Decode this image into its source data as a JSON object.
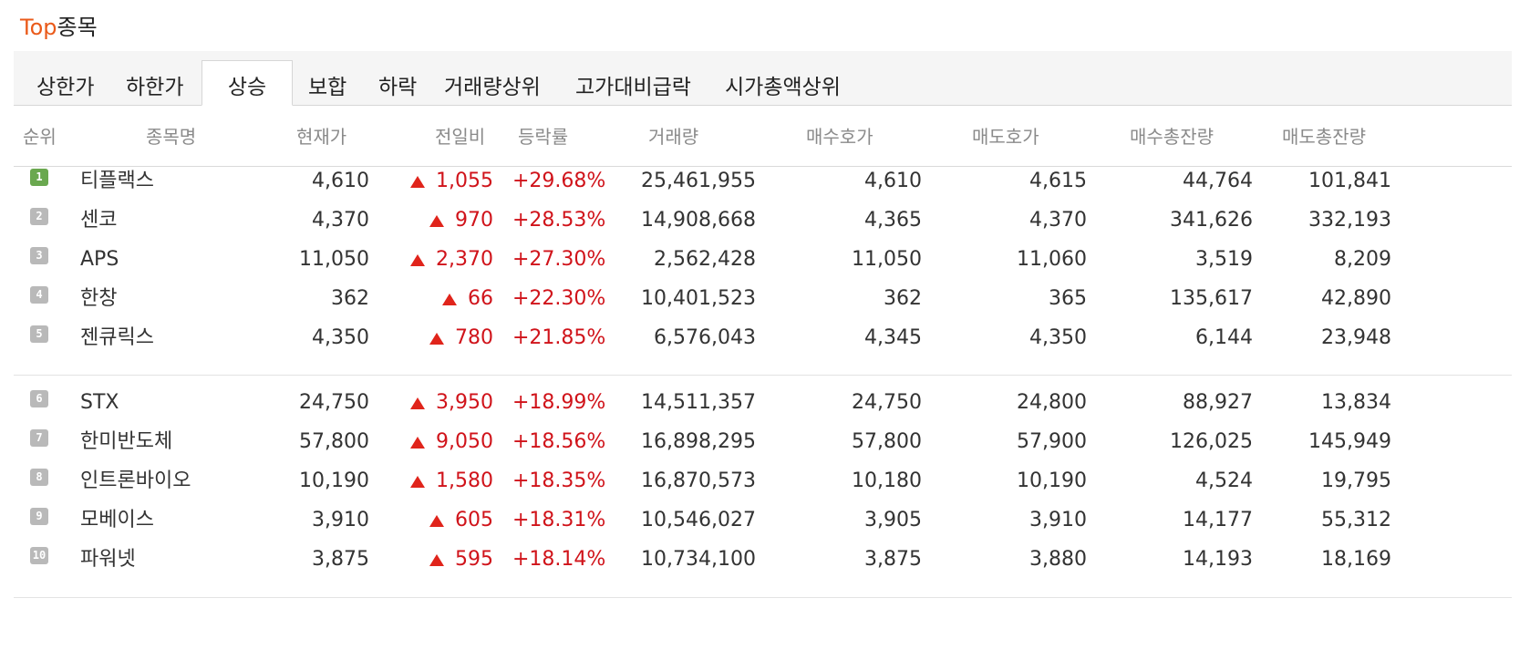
{
  "header": {
    "title_accent": "Top",
    "title_rest": "종목"
  },
  "tabs": [
    {
      "label": "상한가"
    },
    {
      "label": "하한가"
    },
    {
      "label": "상승",
      "active": true
    },
    {
      "label": "보합"
    },
    {
      "label": "하락"
    },
    {
      "label": "거래량상위"
    },
    {
      "label": "고가대비급락"
    },
    {
      "label": "시가총액상위"
    }
  ],
  "columns": [
    "순위",
    "종목명",
    "현재가",
    "전일비",
    "등락률",
    "거래량",
    "매수호가",
    "매도호가",
    "매수총잔량",
    "매도총잔량"
  ],
  "colors": {
    "accent": "#ea5a1a",
    "up": "#d0131a",
    "rank_first": "#6aa84f",
    "rank_other": "#b9b9b9"
  },
  "rows": [
    {
      "rank": "1",
      "name": "티플랙스",
      "price": "4,610",
      "change": "1,055",
      "rate": "+29.68%",
      "volume": "25,461,955",
      "bid": "4,610",
      "ask": "4,615",
      "bid_total": "44,764",
      "ask_total": "101,841"
    },
    {
      "rank": "2",
      "name": "센코",
      "price": "4,370",
      "change": "970",
      "rate": "+28.53%",
      "volume": "14,908,668",
      "bid": "4,365",
      "ask": "4,370",
      "bid_total": "341,626",
      "ask_total": "332,193"
    },
    {
      "rank": "3",
      "name": "APS",
      "price": "11,050",
      "change": "2,370",
      "rate": "+27.30%",
      "volume": "2,562,428",
      "bid": "11,050",
      "ask": "11,060",
      "bid_total": "3,519",
      "ask_total": "8,209"
    },
    {
      "rank": "4",
      "name": "한창",
      "price": "362",
      "change": "66",
      "rate": "+22.30%",
      "volume": "10,401,523",
      "bid": "362",
      "ask": "365",
      "bid_total": "135,617",
      "ask_total": "42,890"
    },
    {
      "rank": "5",
      "name": "젠큐릭스",
      "price": "4,350",
      "change": "780",
      "rate": "+21.85%",
      "volume": "6,576,043",
      "bid": "4,345",
      "ask": "4,350",
      "bid_total": "6,144",
      "ask_total": "23,948"
    },
    {
      "rank": "6",
      "name": "STX",
      "price": "24,750",
      "change": "3,950",
      "rate": "+18.99%",
      "volume": "14,511,357",
      "bid": "24,750",
      "ask": "24,800",
      "bid_total": "88,927",
      "ask_total": "13,834"
    },
    {
      "rank": "7",
      "name": "한미반도체",
      "price": "57,800",
      "change": "9,050",
      "rate": "+18.56%",
      "volume": "16,898,295",
      "bid": "57,800",
      "ask": "57,900",
      "bid_total": "126,025",
      "ask_total": "145,949"
    },
    {
      "rank": "8",
      "name": "인트론바이오",
      "price": "10,190",
      "change": "1,580",
      "rate": "+18.35%",
      "volume": "16,870,573",
      "bid": "10,180",
      "ask": "10,190",
      "bid_total": "4,524",
      "ask_total": "19,795"
    },
    {
      "rank": "9",
      "name": "모베이스",
      "price": "3,910",
      "change": "605",
      "rate": "+18.31%",
      "volume": "10,546,027",
      "bid": "3,905",
      "ask": "3,910",
      "bid_total": "14,177",
      "ask_total": "55,312"
    },
    {
      "rank": "10",
      "name": "파워넷",
      "price": "3,875",
      "change": "595",
      "rate": "+18.14%",
      "volume": "10,734,100",
      "bid": "3,875",
      "ask": "3,880",
      "bid_total": "14,193",
      "ask_total": "18,169"
    }
  ]
}
